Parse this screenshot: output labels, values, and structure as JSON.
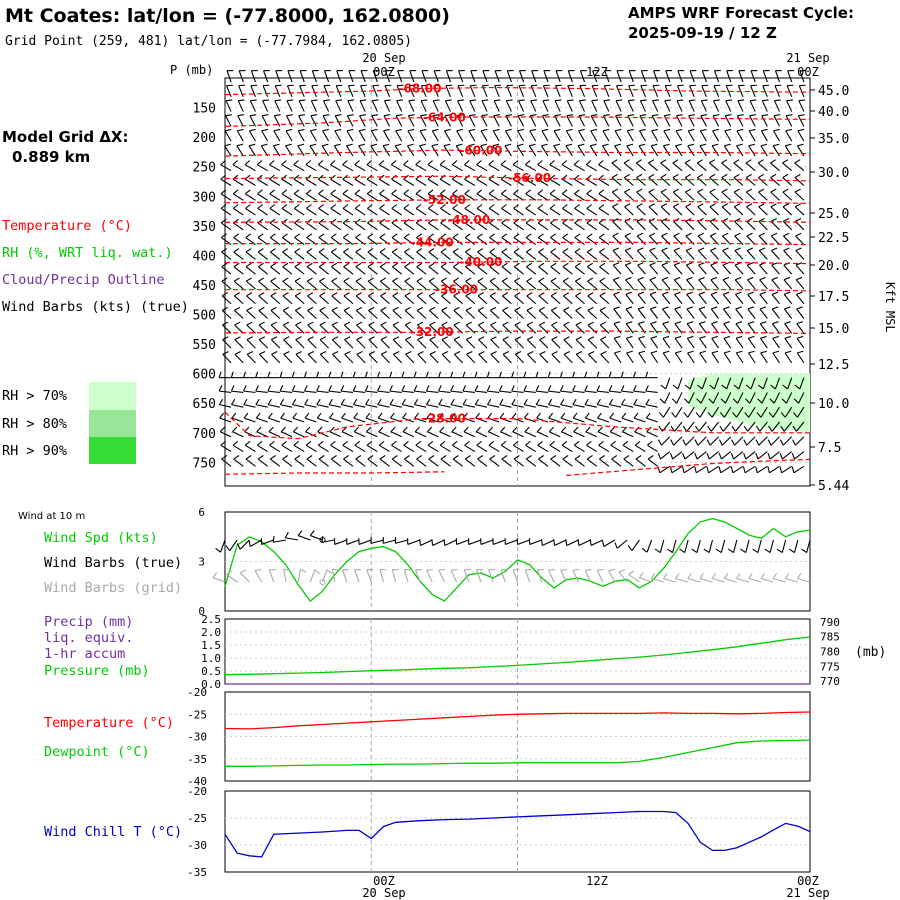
{
  "header": {
    "title": "Mt Coates:  lat/lon = (-77.8000, 162.0800)",
    "grid_point": "Grid Point (259, 481) lat/lon = (-77.7984, 162.0805)",
    "cycle_line1": "AMPS WRF Forecast Cycle:",
    "cycle_line2": "2025-09-19 / 12  Z",
    "model_grid_label": "Model Grid ΔX:",
    "model_grid_value": "0.889 km"
  },
  "legend": {
    "temperature": "Temperature (°C)",
    "rh": "RH (%, WRT liq. wat.)",
    "cloud": "Cloud/Precip Outline",
    "wind": "Wind Barbs (kts) (true)",
    "rh70": "RH > 70%",
    "rh80": "RH > 80%",
    "rh90": "RH > 90%"
  },
  "colors": {
    "temperature": "#ff0000",
    "rh": "#00cc00",
    "cloud": "#7030a0",
    "wind": "#000000",
    "rh70": "#ccffcc",
    "rh80": "#99e699",
    "rh90": "#33dd33",
    "windchill": "#0000cc",
    "grid": "#aaaaaa"
  },
  "time_axis": {
    "top_dates": [
      "20 Sep",
      "21 Sep"
    ],
    "hours": [
      "00Z",
      "12Z",
      "00Z"
    ],
    "bottom_dates": [
      "20 Sep",
      "21 Sep"
    ]
  },
  "chart_data": [
    {
      "type": "contour",
      "name": "upper-air-cross-section",
      "ylabel": "P (mb)",
      "y2label": "Kft MSL",
      "pressure_ticks": [
        "150",
        "200",
        "250",
        "300",
        "350",
        "400",
        "450",
        "500",
        "550",
        "600",
        "650",
        "700",
        "750"
      ],
      "height_ticks": [
        "45.0",
        "40.0",
        "35.0",
        "30.0",
        "25.0",
        "22.5",
        "20.0",
        "17.5",
        "15.0",
        "12.5",
        "10.0",
        "7.5",
        "5.44"
      ],
      "x_hours": [
        -12,
        36
      ],
      "ylim_mb": [
        100,
        790
      ],
      "isotherm_labels": [
        "-68.00",
        "-64.00",
        "-60.00",
        "-56.00",
        "-52.00",
        "-48.00",
        "-44.00",
        "-40.00",
        "-36.00",
        "-32.00",
        "-28.00"
      ],
      "isotherms": [
        {
          "label": "-68.00",
          "label_hour": 4,
          "points": [
            [
              -12,
              128
            ],
            [
              -4,
              124
            ],
            [
              0,
              122
            ],
            [
              4,
              118
            ],
            [
              10,
              116
            ],
            [
              18,
              118
            ],
            [
              26,
              122
            ],
            [
              36,
              124
            ]
          ]
        },
        {
          "label": "-64.00",
          "label_hour": 6,
          "points": [
            [
              -12,
              182
            ],
            [
              -4,
              176
            ],
            [
              2,
              168
            ],
            [
              8,
              166
            ],
            [
              18,
              166
            ],
            [
              26,
              168
            ],
            [
              36,
              170
            ]
          ]
        },
        {
          "label": "-60.00",
          "label_hour": 9,
          "points": [
            [
              -12,
              232
            ],
            [
              -2,
              226
            ],
            [
              6,
              222
            ],
            [
              12,
              224
            ],
            [
              20,
              226
            ],
            [
              28,
              226
            ],
            [
              36,
              228
            ]
          ]
        },
        {
          "label": "-56.00",
          "label_hour": 13,
          "points": [
            [
              -12,
              270
            ],
            [
              -2,
              268
            ],
            [
              6,
              266
            ],
            [
              14,
              270
            ],
            [
              22,
              272
            ],
            [
              30,
              272
            ],
            [
              36,
              274
            ]
          ]
        },
        {
          "label": "-52.00",
          "label_hour": 6,
          "points": [
            [
              -12,
              311
            ],
            [
              -2,
              308
            ],
            [
              6,
              306
            ],
            [
              14,
              306
            ],
            [
              22,
              308
            ],
            [
              30,
              310
            ],
            [
              36,
              312
            ]
          ]
        },
        {
          "label": "-48.00",
          "label_hour": 8,
          "points": [
            [
              -12,
              344
            ],
            [
              -2,
              343
            ],
            [
              6,
              340
            ],
            [
              14,
              340
            ],
            [
              22,
              340
            ],
            [
              30,
              342
            ],
            [
              36,
              344
            ]
          ]
        },
        {
          "label": "-44.00",
          "label_hour": 5,
          "points": [
            [
              -12,
              380
            ],
            [
              -2,
              380
            ],
            [
              6,
              378
            ],
            [
              14,
              378
            ],
            [
              22,
              378
            ],
            [
              30,
              380
            ],
            [
              36,
              382
            ]
          ]
        },
        {
          "label": "-40.00",
          "label_hour": 9,
          "points": [
            [
              -12,
              412
            ],
            [
              -2,
              412
            ],
            [
              6,
              412
            ],
            [
              14,
              410
            ],
            [
              22,
              410
            ],
            [
              30,
              412
            ],
            [
              36,
              414
            ]
          ]
        },
        {
          "label": "-36.00",
          "label_hour": 7,
          "points": [
            [
              -12,
              458
            ],
            [
              -2,
              458
            ],
            [
              6,
              458
            ],
            [
              14,
              458
            ],
            [
              22,
              458
            ],
            [
              30,
              458
            ],
            [
              36,
              460
            ]
          ]
        },
        {
          "label": "-32.00",
          "label_hour": 5,
          "points": [
            [
              -12,
              531
            ],
            [
              -4,
              530
            ],
            [
              4,
              530
            ],
            [
              12,
              528
            ],
            [
              20,
              528
            ],
            [
              28,
              530
            ],
            [
              36,
              532
            ]
          ]
        },
        {
          "label": "-28.00",
          "label_hour": 6,
          "points": [
            [
              -12,
              665
            ],
            [
              -10,
              705
            ],
            [
              -6,
              710
            ],
            [
              -2,
              690
            ],
            [
              4,
              676
            ],
            [
              12,
              676
            ],
            [
              20,
              690
            ],
            [
              28,
              700
            ],
            [
              36,
              700
            ]
          ]
        },
        {
          "label": "",
          "label_hour": 0,
          "points": [
            [
              -12,
              770
            ],
            [
              -6,
              768
            ],
            [
              0,
              768
            ],
            [
              6,
              766
            ]
          ]
        },
        {
          "label": "",
          "label_hour": 0,
          "points": [
            [
              16,
              772
            ],
            [
              22,
              762
            ],
            [
              28,
              752
            ],
            [
              32,
              748
            ],
            [
              36,
              745
            ]
          ]
        }
      ],
      "rh_shading": [
        {
          "level": "70",
          "points": [
            [
              26,
              610
            ],
            [
              28,
              600
            ],
            [
              32,
              600
            ],
            [
              36,
              600
            ],
            [
              36,
              700
            ],
            [
              32,
              690
            ],
            [
              28,
              670
            ],
            [
              26,
              655
            ]
          ]
        }
      ],
      "wind_barbs_note": "Wind barbs at every pressure level for each hour"
    },
    {
      "type": "line",
      "name": "wind-at-10m",
      "title": "Wind at 10 m",
      "labels": {
        "speed": "Wind Spd (kts)",
        "barbs_true": "Wind Barbs (true)",
        "barbs_grid": "Wind Barbs (grid)"
      },
      "ylim": [
        0,
        6
      ],
      "y_ticks": [
        "6",
        "3",
        "0"
      ],
      "x": [
        -12,
        -11,
        -10,
        -9,
        -8,
        -7,
        -6,
        -5,
        -4,
        -3,
        -2,
        -1,
        0,
        1,
        2,
        3,
        4,
        5,
        6,
        7,
        8,
        9,
        10,
        11,
        12,
        13,
        14,
        15,
        16,
        17,
        18,
        19,
        20,
        21,
        22,
        23,
        24,
        25,
        26,
        27,
        28,
        29,
        30,
        31,
        32,
        33,
        34,
        35,
        36
      ],
      "speed": [
        1.5,
        4.0,
        4.5,
        4.2,
        3.6,
        2.8,
        1.6,
        0.6,
        1.2,
        2.2,
        3.0,
        3.6,
        3.8,
        3.9,
        3.6,
        2.8,
        1.8,
        1.0,
        0.6,
        1.4,
        2.2,
        2.3,
        2.0,
        2.4,
        3.1,
        2.8,
        2.0,
        1.4,
        1.9,
        2.0,
        1.8,
        1.5,
        1.8,
        1.9,
        1.4,
        1.8,
        2.6,
        3.6,
        4.7,
        5.4,
        5.6,
        5.4,
        5.0,
        4.6,
        4.4,
        5.0,
        4.5,
        4.8,
        4.9
      ],
      "barb_dir_true": [
        200,
        215,
        225,
        240,
        250,
        260,
        280,
        290,
        290,
        260,
        250,
        250,
        250,
        255,
        255,
        255,
        250,
        245,
        245,
        245,
        250,
        250,
        250,
        250,
        250,
        250,
        250,
        245,
        245,
        245,
        245,
        245,
        240,
        230,
        215,
        200,
        195,
        195,
        195,
        195,
        195,
        195,
        195,
        195,
        195,
        195,
        195,
        195,
        195
      ]
    },
    {
      "type": "line",
      "name": "precip-pressure",
      "labels": {
        "precip": "Precip (mm)",
        "liq": "liq. equiv.",
        "accum": "1-hr accum",
        "pressure": "Pressure (mb)",
        "unit": "(mb)"
      },
      "precip_ylim": [
        0,
        2.5
      ],
      "precip_ticks": [
        "2.5",
        "2.0",
        "1.5",
        "1.0",
        "0.5",
        "0.0"
      ],
      "pressure_ylim": [
        769,
        791
      ],
      "pressure_ticks": [
        "790",
        "785",
        "780",
        "775",
        "770"
      ],
      "x": [
        -12,
        -10,
        -8,
        -6,
        -4,
        -2,
        0,
        2,
        4,
        6,
        8,
        10,
        12,
        14,
        16,
        18,
        20,
        22,
        24,
        26,
        28,
        30,
        32,
        34,
        36
      ],
      "pressure": [
        772.2,
        772.3,
        772.5,
        772.7,
        772.9,
        773.2,
        773.5,
        773.7,
        774.0,
        774.3,
        774.5,
        774.9,
        775.3,
        775.8,
        776.3,
        776.9,
        777.5,
        778.1,
        778.8,
        779.7,
        780.6,
        781.6,
        782.8,
        784.0,
        784.9
      ],
      "precip": [
        0,
        0,
        0,
        0,
        0,
        0,
        0,
        0,
        0,
        0,
        0,
        0,
        0,
        0,
        0,
        0,
        0,
        0,
        0,
        0,
        0,
        0,
        0,
        0,
        0
      ]
    },
    {
      "type": "line",
      "name": "temperature-dewpoint",
      "labels": {
        "temperature": "Temperature (°C)",
        "dewpoint": "Dewpoint (°C)"
      },
      "ylim": [
        -40,
        -20
      ],
      "y_ticks": [
        "-20",
        "-25",
        "-30",
        "-35",
        "-40"
      ],
      "x": [
        -12,
        -10,
        -8,
        -6,
        -4,
        -2,
        0,
        2,
        4,
        6,
        8,
        10,
        12,
        14,
        16,
        18,
        20,
        22,
        24,
        26,
        28,
        30,
        32,
        34,
        36
      ],
      "temperature": [
        -28.2,
        -28.3,
        -28.0,
        -27.6,
        -27.3,
        -27.0,
        -26.7,
        -26.4,
        -26.1,
        -25.8,
        -25.5,
        -25.2,
        -25.0,
        -24.9,
        -24.8,
        -24.8,
        -24.8,
        -24.8,
        -24.7,
        -24.8,
        -24.8,
        -24.9,
        -24.8,
        -24.6,
        -24.5
      ],
      "dewpoint": [
        -36.7,
        -36.7,
        -36.6,
        -36.5,
        -36.4,
        -36.4,
        -36.3,
        -36.2,
        -36.2,
        -36.1,
        -36.0,
        -36.0,
        -35.9,
        -35.9,
        -35.9,
        -35.9,
        -35.9,
        -35.6,
        -34.7,
        -33.6,
        -32.5,
        -31.4,
        -31.0,
        -30.9,
        -30.8
      ]
    },
    {
      "type": "line",
      "name": "wind-chill",
      "labels": {
        "windchill": "Wind Chill T (°C)"
      },
      "ylim": [
        -35,
        -20
      ],
      "y_ticks": [
        "-20",
        "-25",
        "-30",
        "-35"
      ],
      "x": [
        -12,
        -11,
        -10,
        -9,
        -8,
        -6,
        -4,
        -2,
        -1,
        0,
        1,
        2,
        4,
        6,
        8,
        10,
        12,
        14,
        16,
        18,
        20,
        22,
        24,
        25,
        26,
        27,
        28,
        29,
        30,
        31,
        32,
        33,
        34,
        35,
        36
      ],
      "windchill": [
        -28.0,
        -31.5,
        -32.0,
        -32.2,
        -28.0,
        -27.8,
        -27.6,
        -27.3,
        -27.3,
        -28.8,
        -26.6,
        -25.8,
        -25.5,
        -25.3,
        -25.2,
        -25.0,
        -24.8,
        -24.6,
        -24.4,
        -24.2,
        -24.0,
        -23.8,
        -23.8,
        -24.0,
        -26.0,
        -29.5,
        -31.0,
        -31.0,
        -30.5,
        -29.5,
        -28.5,
        -27.2,
        -26.0,
        -26.5,
        -27.5
      ]
    }
  ]
}
